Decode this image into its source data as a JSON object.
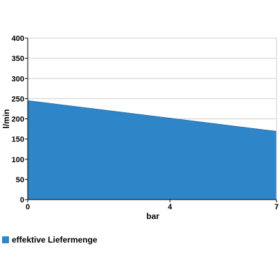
{
  "chart_data": {
    "type": "area",
    "x": [
      0,
      7
    ],
    "x_ticks": [
      "0",
      "4",
      "7"
    ],
    "x_tick_values": [
      0,
      4,
      7
    ],
    "y_ticks": [
      "0",
      "50",
      "100",
      "150",
      "200",
      "250",
      "300",
      "350",
      "400"
    ],
    "y_tick_values": [
      0,
      50,
      100,
      150,
      200,
      250,
      300,
      350,
      400
    ],
    "xlim": [
      0,
      7
    ],
    "ylim": [
      0,
      400
    ],
    "xlabel": "bar",
    "ylabel": "l/min",
    "grid": "horizontal",
    "legend_position": "bottom-left",
    "series": [
      {
        "name": "effektive Liefermenge",
        "x": [
          0,
          7
        ],
        "values": [
          245,
          169
        ],
        "color": "#2e86c9"
      }
    ]
  }
}
